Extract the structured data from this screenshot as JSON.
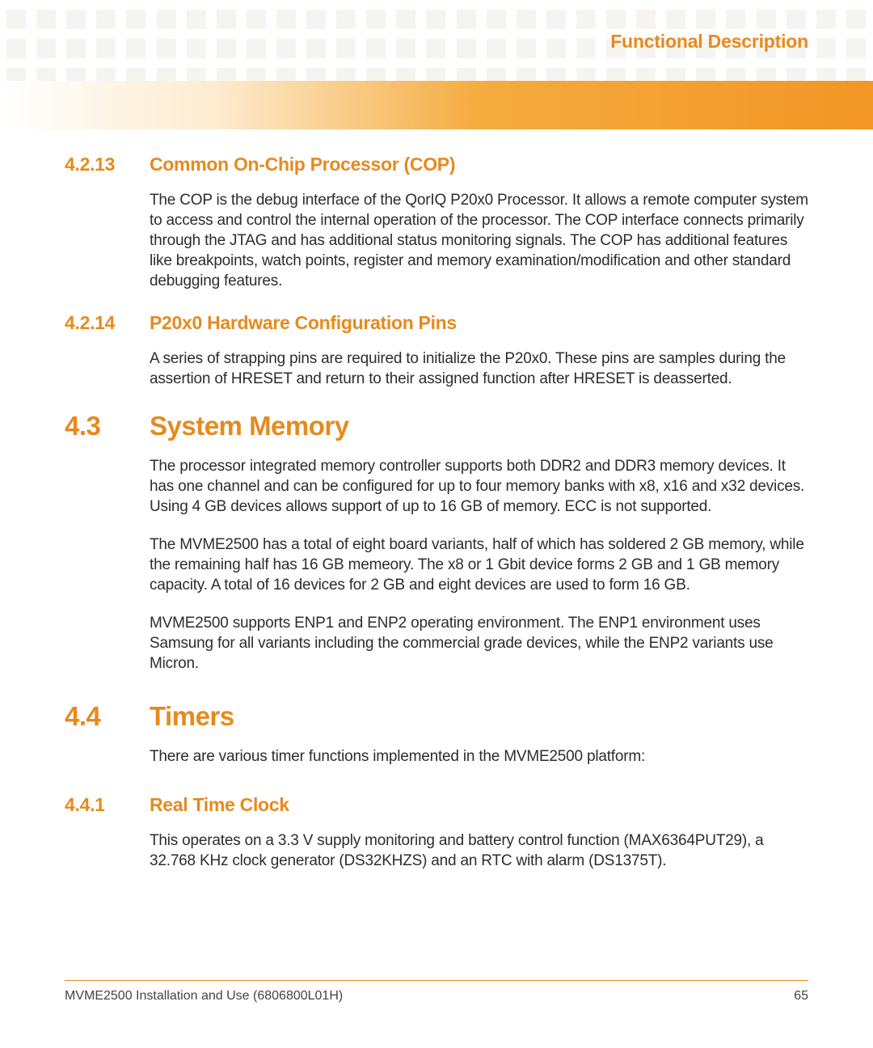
{
  "colors": {
    "accent": "#e68a1e",
    "body_text": "#2d2d2d",
    "footer_text": "#444444",
    "bg": "#ffffff",
    "square_pattern": "#f1ede8",
    "gradient_start": "#ffffff",
    "gradient_mid": "#fdebcf",
    "gradient_end": "#f29625"
  },
  "typography": {
    "header_title_fontsize_pt": 17,
    "subheading_fontsize_pt": 17,
    "main_heading_fontsize_pt": 25,
    "body_fontsize_pt": 14,
    "footer_fontsize_pt": 12,
    "font_family": "Myriad Pro / Segoe UI"
  },
  "header": {
    "running_title": "Functional Description"
  },
  "sections": [
    {
      "level": "sub",
      "number": "4.2.13",
      "title": "Common On-Chip Processor (COP)",
      "paragraphs": [
        "The COP is the debug interface of the QorIQ P20x0 Processor. It allows a remote computer system to access and control the internal operation of the processor. The COP interface connects primarily through the JTAG and has additional status monitoring signals. The COP has additional features like breakpoints, watch points, register and memory examination/modification and other standard debugging features."
      ]
    },
    {
      "level": "sub",
      "number": "4.2.14",
      "title": "P20x0 Hardware Configuration Pins",
      "paragraphs": [
        "A series of strapping pins are required to initialize the P20x0. These pins are samples during the assertion of HRESET and return to their assigned function after HRESET is deasserted."
      ]
    },
    {
      "level": "main",
      "number": "4.3",
      "title": "System Memory",
      "paragraphs": [
        "The processor integrated memory controller supports both DDR2 and DDR3 memory devices. It has one channel and can be configured for up to four memory banks with x8, x16 and x32 devices. Using 4 GB devices allows support of up to 16 GB of memory. ECC is not supported.",
        "The MVME2500 has a total of eight board variants, half of which has soldered 2 GB memory, while the remaining half has 16 GB memeory. The x8 or 1 Gbit device forms 2 GB and 1 GB memory capacity. A total of 16 devices for 2 GB and eight devices are used to form 16 GB.",
        "MVME2500 supports ENP1 and ENP2 operating environment. The ENP1 environment uses Samsung  for all variants including the commercial grade devices, while the ENP2 variants use Micron."
      ]
    },
    {
      "level": "main",
      "number": "4.4",
      "title": "Timers",
      "paragraphs": [
        "There are various timer functions implemented in the MVME2500 platform:"
      ]
    },
    {
      "level": "sub",
      "number": "4.4.1",
      "title": "Real Time Clock",
      "paragraphs": [
        "This operates on a 3.3 V supply monitoring and battery control function (MAX6364PUT29), a 32.768 KHz clock generator (DS32KHZS) and an RTC with alarm (DS1375T)."
      ]
    }
  ],
  "footer": {
    "doc_title": "MVME2500 Installation and Use (6806800L01H)",
    "page_number": "65"
  }
}
